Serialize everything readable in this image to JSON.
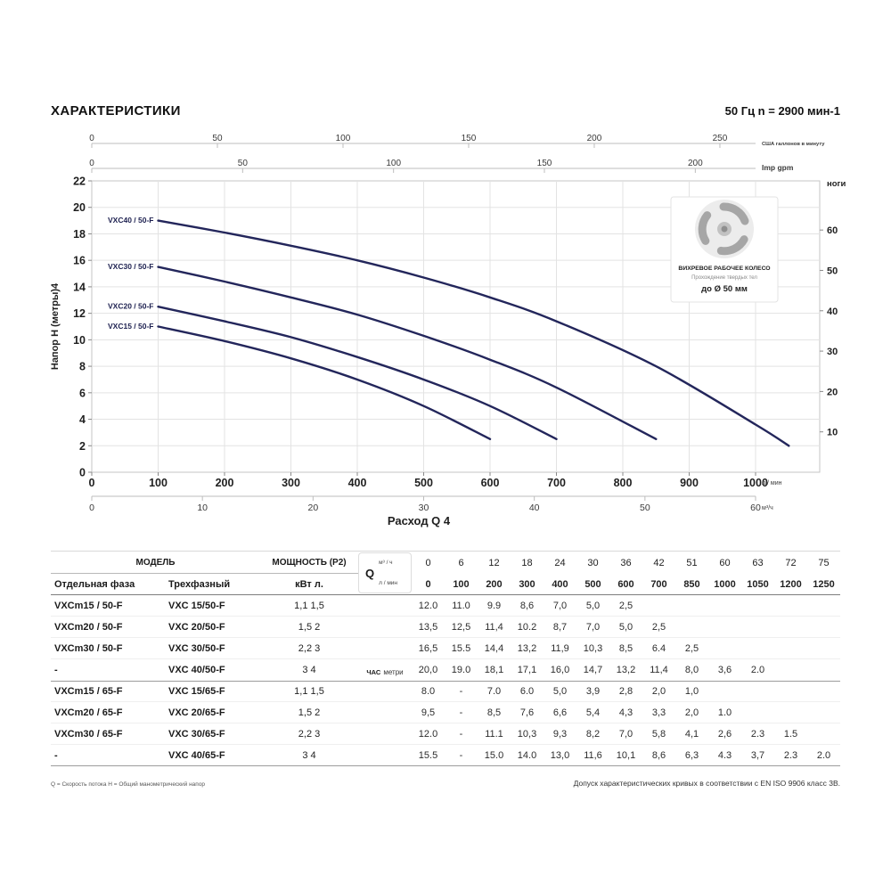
{
  "header": {
    "title": "ХАРАКТЕРИСТИКИ",
    "frequency": "50 Гц n = 2900 мин-1"
  },
  "chart_data": {
    "type": "line",
    "xlabel": "Расход Q 4",
    "ylabel": "Напор H (метры)4",
    "x_unit": "л / мин",
    "xlim": [
      0,
      1100
    ],
    "ylim": [
      0,
      22
    ],
    "grid": true,
    "x_ticks": [
      0,
      100,
      200,
      300,
      400,
      500,
      600,
      700,
      800,
      900,
      1000
    ],
    "y_ticks": [
      0,
      2,
      4,
      6,
      8,
      10,
      12,
      14,
      16,
      18,
      20,
      22
    ],
    "top_scales": [
      {
        "unit": "США галлонов в минуту",
        "ticks": [
          0,
          50,
          100,
          150,
          200,
          250
        ],
        "lmin_per_unit": 3.785
      },
      {
        "unit": "Imp gpm",
        "ticks": [
          0,
          50,
          100,
          150,
          200
        ],
        "lmin_per_unit": 4.546
      }
    ],
    "bottom_scale": {
      "unit": "м³/ч",
      "ticks": [
        0,
        10,
        20,
        30,
        40,
        50,
        60
      ],
      "lmin_per_unit": 16.667
    },
    "right_axis": {
      "unit": "ноги",
      "ticks": [
        10,
        20,
        30,
        40,
        50,
        60
      ],
      "m_per_unit": 0.3048
    },
    "series": [
      {
        "name": "VXC40 / 50-F",
        "x": [
          100,
          200,
          300,
          400,
          500,
          600,
          700,
          850,
          1000,
          1050
        ],
        "y": [
          19.0,
          18.1,
          17.1,
          16.0,
          14.7,
          13.2,
          11.4,
          8.0,
          3.6,
          2.0
        ]
      },
      {
        "name": "VXC30 / 50-F",
        "x": [
          100,
          200,
          300,
          400,
          500,
          600,
          700,
          850
        ],
        "y": [
          15.5,
          14.4,
          13.2,
          11.9,
          10.3,
          8.5,
          6.4,
          2.5
        ]
      },
      {
        "name": "VXC20 / 50-F",
        "x": [
          100,
          200,
          300,
          400,
          500,
          600,
          700
        ],
        "y": [
          12.5,
          11.4,
          10.2,
          8.7,
          7.0,
          5.0,
          2.5
        ]
      },
      {
        "name": "VXC15 / 50-F",
        "x": [
          100,
          200,
          300,
          400,
          500,
          600
        ],
        "y": [
          11.0,
          9.9,
          8.6,
          7.0,
          5.0,
          2.5
        ]
      }
    ]
  },
  "inset": {
    "line1": "ВИХРЕВОЕ РАБОЧЕЕ КОЛЕСО",
    "line2": "Прохождение твердых тел",
    "line3": "до Ø 50 мм"
  },
  "table": {
    "model_header": "МОДЕЛЬ",
    "col_single_phase": "Отдельная фаза",
    "col_three_phase": "Трехфазный",
    "power_header": "МОЩНОСТЬ (P2)",
    "power_sub": "кВт л.",
    "q_label": "Q",
    "q_unit_top": "м³ / ч",
    "q_unit_bottom": "л / мин",
    "h_label_small": "ЧАС",
    "h_label_unit": "метри",
    "flow_m3h": [
      "0",
      "6",
      "12",
      "18",
      "24",
      "30",
      "36",
      "42",
      "51",
      "60",
      "63",
      "72",
      "75"
    ],
    "flow_lmin": [
      "0",
      "100",
      "200",
      "300",
      "400",
      "500",
      "600",
      "700",
      "850",
      "1000",
      "1050",
      "1200",
      "1250"
    ],
    "rows": [
      {
        "single": "VXCm15 / 50-F",
        "three": "VXC 15/50-F",
        "power": "1,1 1,5",
        "values": [
          "12.0",
          "11.0",
          "9.9",
          "8,6",
          "7,0",
          "5,0",
          "2,5",
          "",
          "",
          "",
          "",
          "",
          ""
        ]
      },
      {
        "single": "VXCm20 / 50-F",
        "three": "VXC 20/50-F",
        "power": "1,5 2",
        "values": [
          "13,5",
          "12,5",
          "11,4",
          "10.2",
          "8,7",
          "7,0",
          "5,0",
          "2,5",
          "",
          "",
          "",
          "",
          ""
        ]
      },
      {
        "single": "VXCm30 / 50-F",
        "three": "VXC 30/50-F",
        "power": "2,2 3",
        "values": [
          "16,5",
          "15.5",
          "14,4",
          "13,2",
          "11,9",
          "10,3",
          "8,5",
          "6.4",
          "2,5",
          "",
          "",
          "",
          ""
        ]
      },
      {
        "single": "-",
        "three": "VXC 40/50-F",
        "power": "3 4",
        "values": [
          "20,0",
          "19.0",
          "18,1",
          "17,1",
          "16,0",
          "14,7",
          "13,2",
          "11,4",
          "8,0",
          "3,6",
          "2.0",
          "",
          ""
        ]
      },
      {
        "single": "VXCm15 / 65-F",
        "three": "VXC 15/65-F",
        "power": "1,1 1,5",
        "values": [
          "8.0",
          "-",
          "7.0",
          "6.0",
          "5,0",
          "3,9",
          "2,8",
          "2,0",
          "1,0",
          "",
          "",
          "",
          ""
        ]
      },
      {
        "single": "VXCm20 / 65-F",
        "three": "VXC 20/65-F",
        "power": "1,5 2",
        "values": [
          "9,5",
          "-",
          "8,5",
          "7,6",
          "6,6",
          "5,4",
          "4,3",
          "3,3",
          "2,0",
          "1.0",
          "",
          "",
          ""
        ]
      },
      {
        "single": "VXCm30 / 65-F",
        "three": "VXC 30/65-F",
        "power": "2,2 3",
        "values": [
          "12.0",
          "-",
          "11.1",
          "10,3",
          "9,3",
          "8,2",
          "7,0",
          "5,8",
          "4,1",
          "2,6",
          "2.3",
          "1.5",
          ""
        ]
      },
      {
        "single": "-",
        "three": "VXC 40/65-F",
        "power": "3 4",
        "values": [
          "15.5",
          "-",
          "15.0",
          "14.0",
          "13,0",
          "11,6",
          "10,1",
          "8,6",
          "6,3",
          "4.3",
          "3,7",
          "2.3",
          "2.0"
        ]
      }
    ]
  },
  "footnotes": {
    "left": "Q = Скорость потока H = Общий манометрический напор",
    "right": "Допуск характеристических кривых в соответствии с EN ISO 9906 класс 3В."
  }
}
